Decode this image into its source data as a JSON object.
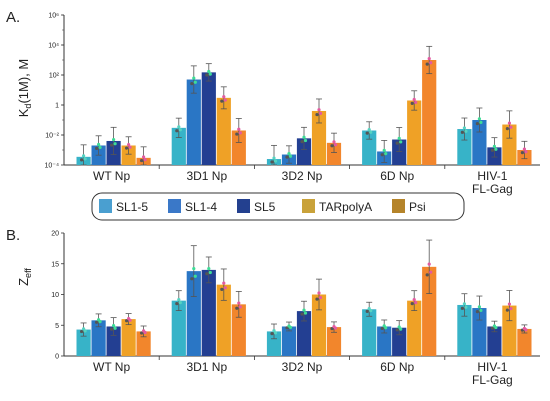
{
  "colors": {
    "SL1-5": "#37b3c8",
    "SL1-4": "#2a76c5",
    "SL5": "#233f92",
    "TARpolyA": "#efa126",
    "Psi": "#f2862c",
    "err": "#555555"
  },
  "legend": {
    "entries": [
      "SL1-5",
      "SL1-4",
      "SL5",
      "TARpolyA",
      "Psi"
    ],
    "colors": [
      "#4a9fd0",
      "#3a78c8",
      "#23408f",
      "#c9a23a",
      "#b5842a"
    ]
  },
  "chart_data": [
    {
      "type": "bar",
      "panel": "A.",
      "ylabel_main": "K",
      "ylabel_sub": "d",
      "ylabel_rest": "(1M), M",
      "yscale": "log",
      "ylim": [
        0.0001,
        1000000
      ],
      "yticks": [
        0.0001,
        0.01,
        1,
        100,
        10000,
        1000000
      ],
      "ytick_labels": [
        "10⁻⁴",
        "10⁻²",
        "1",
        "10²",
        "10⁴",
        "10⁶"
      ],
      "categories": [
        "WT Np",
        "3D1  Np",
        "3D2 Np",
        "6D Np",
        "HIV-1 FL-Gag"
      ],
      "series": [
        {
          "name": "SL1-5",
          "values": [
            0.00035,
            0.03,
            0.00025,
            0.02,
            0.025
          ]
        },
        {
          "name": "SL1-4",
          "values": [
            0.002,
            50,
            0.0005,
            0.0008,
            0.1
          ]
        },
        {
          "name": "SL5",
          "values": [
            0.004,
            150,
            0.006,
            0.005,
            0.0015
          ]
        },
        {
          "name": "TARpolyA",
          "values": [
            0.002,
            3,
            0.4,
            2,
            0.05
          ]
        },
        {
          "name": "Psi",
          "values": [
            0.0003,
            0.02,
            0.003,
            1000,
            0.001
          ]
        }
      ]
    },
    {
      "type": "bar",
      "panel": "B.",
      "ylabel_main": "Z",
      "ylabel_sub": "eff",
      "ylabel_rest": "",
      "ylim": [
        0,
        20
      ],
      "yticks": [
        0,
        5,
        10,
        15,
        20
      ],
      "ytick_labels": [
        "0",
        "5",
        "10",
        "15",
        "20"
      ],
      "categories": [
        "WT Np",
        "3D1  Np",
        "3D2 Np",
        "6D Np",
        "HIV-1 FL-Gag"
      ],
      "series": [
        {
          "name": "SL1-5",
          "values": [
            4.3,
            9.0,
            4.0,
            7.6,
            8.3
          ]
        },
        {
          "name": "SL1-4",
          "values": [
            5.8,
            13.8,
            4.8,
            4.8,
            7.8
          ]
        },
        {
          "name": "SL5",
          "values": [
            4.8,
            14.0,
            7.3,
            4.6,
            4.8
          ]
        },
        {
          "name": "TARpolyA",
          "values": [
            6.0,
            11.6,
            10.0,
            9.0,
            8.2
          ]
        },
        {
          "name": "Psi",
          "values": [
            4.0,
            8.4,
            4.7,
            14.5,
            4.4
          ]
        }
      ]
    }
  ]
}
